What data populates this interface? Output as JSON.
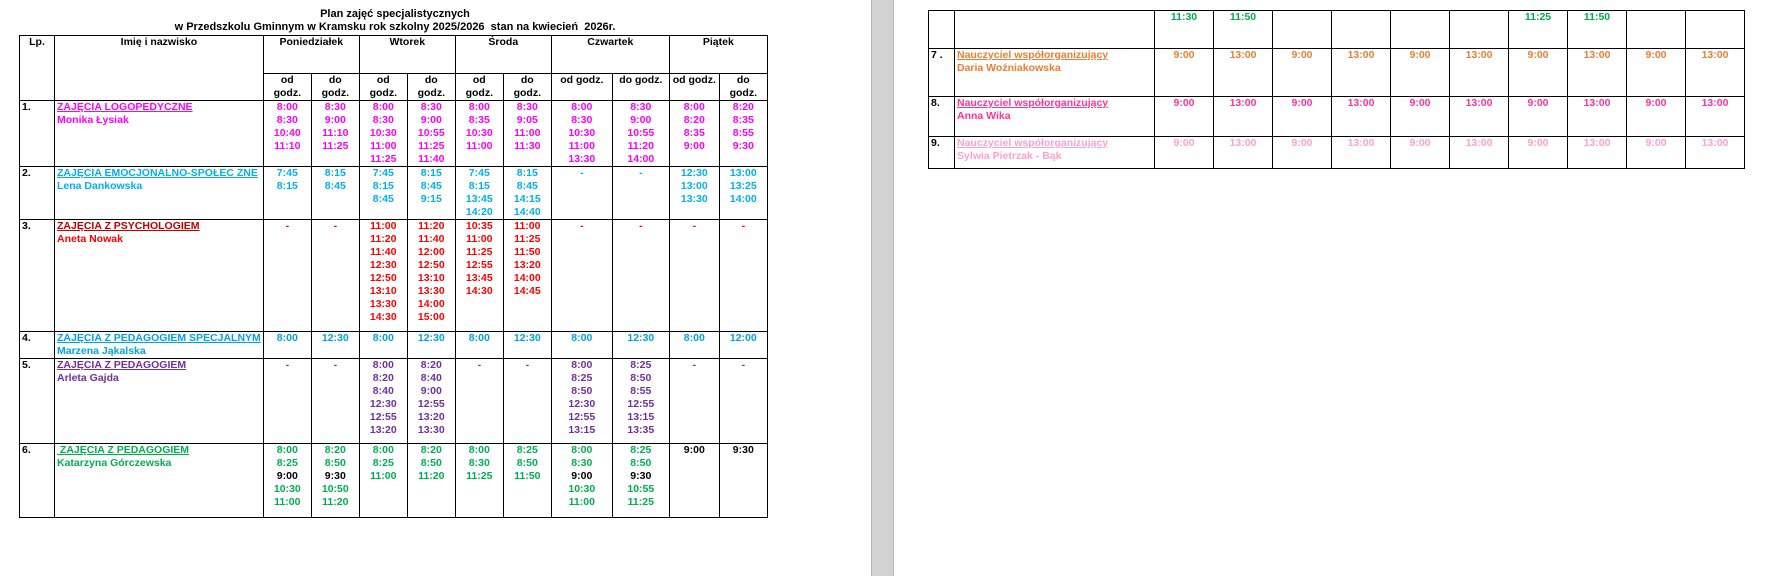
{
  "page1": {
    "title_line1": "Plan zajęć specjalistycznych",
    "title_line2": "w Przedszkolu Gminnym w Kramsku rok szkolny 2025/2026  stan na kwiecień  2026r.",
    "table": {
      "lp_header": "Lp.",
      "name_header": "Imię i nazwisko",
      "days": [
        "Poniedziałek",
        "Wtorek",
        "Środa",
        "Czwartek",
        "Piątek"
      ],
      "od_label": "od godz.",
      "do_label": "do godz.",
      "rows": [
        {
          "lp": "1.",
          "title": "ZAJĘCIA LOGOPEDYCZNE",
          "person": "Monika Łysiak",
          "color": "#FF00FF",
          "cells": [
            [
              "8:00",
              "8:30",
              "10:40",
              "11:10"
            ],
            [
              "8:30",
              "9:00",
              "11:10",
              "11:25"
            ],
            [
              "8:00",
              "8:30",
              "10:30",
              "11:00",
              "11:25"
            ],
            [
              "8:30",
              "9:00",
              "10:55",
              "11:25",
              "11:40"
            ],
            [
              "8:00",
              "8:35",
              "10:30",
              "11:00"
            ],
            [
              "8:30",
              "9:05",
              "11:00",
              "11:30"
            ],
            [
              "8:00",
              "8:30",
              "10:30",
              "11:00",
              "13:30"
            ],
            [
              "8:30",
              "9:00",
              "10:55",
              "11:20",
              "14:00"
            ],
            [
              "8:00",
              "8:20",
              "8:35",
              "9:00"
            ],
            [
              "8:20",
              "8:35",
              "8:55",
              "9:30"
            ]
          ]
        },
        {
          "lp": "2.",
          "title": "ZAJĘCIA EMOCJONALNO-SPOŁEC ZNE",
          "person": "Lena Dankowska",
          "color": "#00B0F0",
          "cells": [
            [
              "7:45",
              "8:15"
            ],
            [
              "8:15",
              "8:45"
            ],
            [
              "7:45",
              "8:15",
              "8:45"
            ],
            [
              "8:15",
              "8:45",
              "9:15"
            ],
            [
              "7:45",
              "8:15",
              "13:45",
              "14:20"
            ],
            [
              "8:15",
              "8:45",
              "14:15",
              "14:40"
            ],
            [
              "-"
            ],
            [
              "-"
            ],
            [
              "12:30",
              "13:00",
              "13:30"
            ],
            [
              "13:00",
              "13:25",
              "14:00"
            ]
          ]
        },
        {
          "lp": "3.",
          "title": "ZAJĘCIA Z PSYCHOLOGIEM",
          "person": "Aneta Nowak",
          "color": "#FF0000",
          "title_color": "#C00000",
          "cells": [
            [
              "-"
            ],
            [
              "-"
            ],
            [
              "11:00",
              "11:20",
              "11:40",
              "12:30",
              "12:50",
              "13:10",
              "13:30",
              "14:30"
            ],
            [
              "11:20",
              "11:40",
              "12:00",
              "12:50",
              "13:10",
              "13:30",
              "14:00",
              "15:00"
            ],
            [
              "10:35",
              "11:00",
              "11:25",
              "12:55",
              "13:45",
              "14:30"
            ],
            [
              "11:00",
              "11:25",
              "11:50",
              "13:20",
              "14:00",
              "14:45"
            ],
            [
              "-"
            ],
            [
              "-"
            ],
            [
              "-"
            ],
            [
              "-"
            ]
          ]
        },
        {
          "lp": "4.",
          "title": "ZAJĘCIA Z PEDAGOGIEM SPECJALNYM",
          "person": "Marzena Jąkalska",
          "color": "#00A2E8",
          "cells": [
            [
              "8:00"
            ],
            [
              "12:30"
            ],
            [
              "8:00"
            ],
            [
              "12:30"
            ],
            [
              "8:00"
            ],
            [
              "12:30"
            ],
            [
              "8:00"
            ],
            [
              "12:30"
            ],
            [
              "8:00"
            ],
            [
              "12:00"
            ]
          ]
        },
        {
          "lp": "5.",
          "title": "ZAJĘCIA Z PEDAGOGIEM",
          "person": "Arleta Gajda",
          "color": "#7030A0",
          "cells": [
            [
              "-"
            ],
            [
              "-"
            ],
            [
              "8:00",
              "8:20",
              "8:40",
              "12:30",
              "12:55",
              "13:20"
            ],
            [
              "8:20",
              "8:40",
              "9:00",
              "12:55",
              "13:20",
              "13:30"
            ],
            [
              "-"
            ],
            [
              "-"
            ],
            [
              "8:00",
              "8:25",
              "8:50",
              "12:30",
              "12:55",
              "13:15"
            ],
            [
              "8:25",
              "8:50",
              "8:55",
              "12:55",
              "13:15",
              "13:35"
            ],
            [
              "-"
            ],
            [
              "-"
            ]
          ]
        },
        {
          "lp": "6.",
          "title": " ZAJĘCIA Z PEDAGOGIEM",
          "person": "Katarzyna Górczewska",
          "color": "#00B050",
          "cells": [
            [
              "8:00",
              "8:25",
              "!9:00",
              "10:30",
              "11:00"
            ],
            [
              "8:20",
              "8:50",
              "!9:30",
              "10:50",
              "11:20"
            ],
            [
              "8:00",
              "8:25",
              "11:00"
            ],
            [
              "8:20",
              "8:50",
              "11:20"
            ],
            [
              "8:00",
              "8:30",
              "11:25"
            ],
            [
              "8:25",
              "8:50",
              "11:50"
            ],
            [
              "8:00",
              "8:30",
              "!9:00",
              "10:30",
              "11:00"
            ],
            [
              "8:25",
              "8:50",
              "!9:30",
              "10:55",
              "11:25"
            ],
            [
              "!9:00"
            ],
            [
              "!9:30"
            ]
          ]
        }
      ]
    }
  },
  "page2": {
    "table": {
      "rows": [
        {
          "lp": "",
          "title": "",
          "person": "",
          "color": "#00B050",
          "cells": [
            [
              "11:30"
            ],
            [
              "11:50"
            ],
            [],
            [],
            [],
            [],
            [
              "11:25"
            ],
            [
              "11:50"
            ],
            [],
            []
          ]
        },
        {
          "lp": "7 .",
          "title": "Nauczyciel współorganizujący",
          "person": "Daria Woźniakowska",
          "color": "#ED7D31",
          "cells": [
            [
              "9:00"
            ],
            [
              "13:00"
            ],
            [
              "9:00"
            ],
            [
              "13:00"
            ],
            [
              "9:00"
            ],
            [
              "13:00"
            ],
            [
              "9:00"
            ],
            [
              "13:00"
            ],
            [
              "9:00"
            ],
            [
              "13:00"
            ]
          ]
        },
        {
          "lp": "8.",
          "title": "Nauczyciel współorganizujący",
          "person": "Anna Wika",
          "color": "#FF3399",
          "cells": [
            [
              "9:00"
            ],
            [
              "13:00"
            ],
            [
              "9:00"
            ],
            [
              "13:00"
            ],
            [
              "9:00"
            ],
            [
              "13:00"
            ],
            [
              "9:00"
            ],
            [
              "13:00"
            ],
            [
              "9:00"
            ],
            [
              "13:00"
            ]
          ]
        },
        {
          "lp": "9.",
          "title": "Nauczyciel współorganizujący",
          "person": "Sylwia Pietrzak - Bąk",
          "color": "#FFA0CC",
          "cells": [
            [
              "9:00"
            ],
            [
              "13:00"
            ],
            [
              "9:00"
            ],
            [
              "13:00"
            ],
            [
              "9:00"
            ],
            [
              "13:00"
            ],
            [
              "9:00"
            ],
            [
              "13:00"
            ],
            [
              "9:00"
            ],
            [
              "13:00"
            ]
          ]
        }
      ]
    }
  }
}
